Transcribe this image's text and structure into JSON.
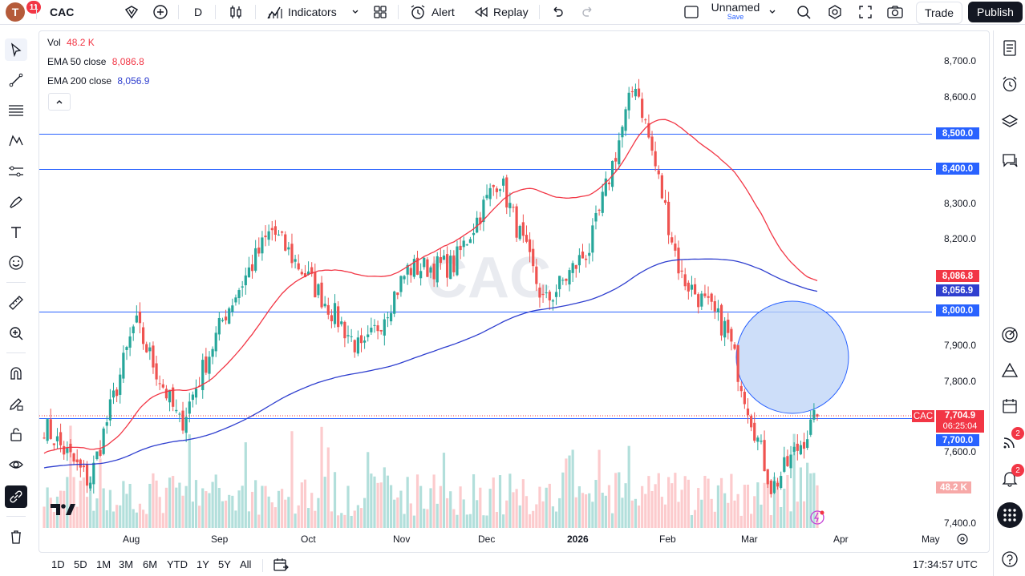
{
  "topbar": {
    "avatar_letter": "T",
    "avatar_badge": "11",
    "symbol": "CAC",
    "interval": "D",
    "indicators_label": "Indicators",
    "alert_label": "Alert",
    "replay_label": "Replay",
    "layout_name": "Unnamed",
    "layout_save": "Save",
    "trade_label": "Trade",
    "publish_label": "Publish"
  },
  "legend": {
    "vol_name": "Vol",
    "vol_value": "48.2 K",
    "ema50_name": "EMA 50 close",
    "ema50_value": "8,086.8",
    "ema200_name": "EMA 200 close",
    "ema200_value": "8,056.9"
  },
  "watermark": "CAC",
  "price_axis": [
    "8,700.0",
    "8,600.0",
    "8,500.0",
    "8,400.0",
    "8,300.0",
    "8,200.0",
    "8,086.8",
    "8,056.9",
    "8,000.0",
    "7,900.0",
    "7,800.0",
    "7,704.9",
    "7,700.0",
    "7,600.0",
    "48.2 K",
    "7,400.0"
  ],
  "price_labels": {
    "level_8500": "8,500.0",
    "level_8400": "8,400.0",
    "ema50": "8,086.8",
    "ema200": "8,056.9",
    "level_8000": "8,000.0",
    "symbol_tag": "CAC",
    "last_price": "7,704.9",
    "countdown": "06:25:04",
    "level_7700": "7,700.0",
    "volume": "48.2 K"
  },
  "time_axis": [
    "Aug",
    "Sep",
    "Oct",
    "Nov",
    "Dec",
    "2026",
    "Feb",
    "Mar",
    "Apr",
    "May"
  ],
  "bottombar": {
    "ranges": [
      "1D",
      "5D",
      "1M",
      "3M",
      "6M",
      "YTD",
      "1Y",
      "5Y",
      "All"
    ],
    "clock": "17:34:57 UTC"
  },
  "rightbar": {
    "badge_ideas": "2",
    "badge_alerts": "2"
  },
  "colors": {
    "up": "#26a69a",
    "down": "#ef5350",
    "ema50": "#f23645",
    "ema200": "#2f3fcf",
    "hline": "#2962ff",
    "circle_fill": "#bcd3f7",
    "circle_stroke": "#2962ff"
  },
  "chart_data": {
    "type": "candlestick",
    "title": "CAC",
    "interval": "D",
    "horizontal_levels": [
      8500,
      8400,
      8000,
      7700
    ],
    "last_price": 7704.9,
    "ema50_last": 8086.8,
    "ema200_last": 8056.9,
    "volume_last": "48.2 K",
    "ylim": [
      7380,
      8740
    ],
    "key_closes": [
      {
        "x": "Jul",
        "y": 7680
      },
      {
        "x": "Aug",
        "y": 7520
      },
      {
        "x": "Aug-late",
        "y": 7970
      },
      {
        "x": "Sep",
        "y": 7680
      },
      {
        "x": "Oct",
        "y": 8000
      },
      {
        "x": "Oct-late",
        "y": 8230
      },
      {
        "x": "Nov",
        "y": 8060
      },
      {
        "x": "Nov-late",
        "y": 7880
      },
      {
        "x": "Dec",
        "y": 8120
      },
      {
        "x": "2026",
        "y": 8130
      },
      {
        "x": "2026-mid",
        "y": 8380
      },
      {
        "x": "Jan-late",
        "y": 8020
      },
      {
        "x": "Feb",
        "y": 8180
      },
      {
        "x": "Feb-late",
        "y": 8650
      },
      {
        "x": "Mar",
        "y": 8100
      },
      {
        "x": "Mar-mid",
        "y": 7950
      },
      {
        "x": "Mar-late",
        "y": 7500
      },
      {
        "x": "last",
        "y": 7704.9
      }
    ]
  }
}
